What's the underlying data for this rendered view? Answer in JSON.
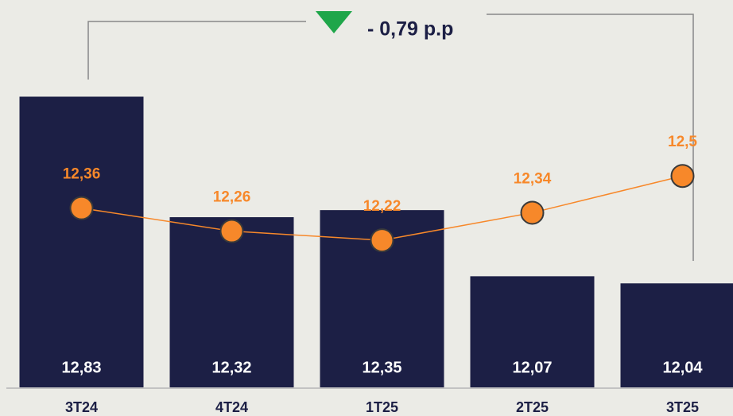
{
  "chart_data": {
    "type": "bar",
    "annotation": "- 0,79 p.p",
    "categories": [
      "3T24",
      "4T24",
      "1T25",
      "2T25",
      "3T25"
    ],
    "series": [
      {
        "type": "bar",
        "color": "#1c1f45",
        "values": [
          12.83,
          12.32,
          12.35,
          12.07,
          12.04
        ],
        "value_labels": [
          "12,83",
          "12,32",
          "12,35",
          "12,07",
          "12,04"
        ]
      },
      {
        "type": "line",
        "axis": "y2",
        "color": "#f7882a",
        "values": [
          12.36,
          12.26,
          12.22,
          12.34,
          12.5
        ],
        "value_labels": [
          "12,36",
          "12,26",
          "12,22",
          "12,34",
          "12,5"
        ]
      }
    ],
    "ylim": [
      11.6,
      13.0
    ],
    "y2lim": [
      11.58,
      13.02
    ]
  }
}
